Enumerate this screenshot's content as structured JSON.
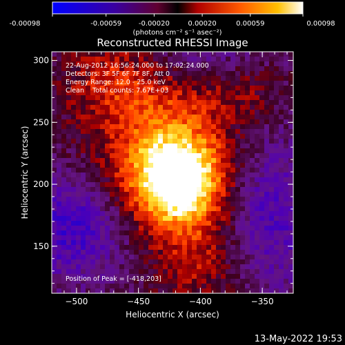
{
  "chart_data": {
    "type": "heatmap",
    "title": "Reconstructed RHESSI Image",
    "xlabel": "Heliocentric X (arcsec)",
    "ylabel": "Heliocentric Y (arcsec)",
    "xlim": [
      -520,
      -325
    ],
    "ylim": [
      112,
      307
    ],
    "x_ticks": [
      -500,
      -450,
      -400,
      -350
    ],
    "y_ticks": [
      150,
      200,
      250,
      300
    ],
    "colorbar": {
      "unit_label": "(photons cm⁻² s⁻¹ asec⁻²)",
      "ticks": [
        "-0.00098",
        "-0.00059",
        "-0.00020",
        "0.00020",
        "0.00059",
        "0.00098"
      ],
      "range": [
        -0.00098,
        0.00098
      ]
    },
    "annotations": [
      "22-Aug-2012 16:56:24.000 to 17:02:24.000",
      "Detectors: 3F 5F 6F 7F 8F, Att 0",
      "Energy Range: 12.0 - 25.0 keV",
      "Clean    Total counts: 7.67E+03"
    ],
    "peak_label": "Position of Peak = [-418,203]",
    "peak": [
      -418,
      203
    ],
    "timestamp": "13-May-2022 19:53"
  }
}
